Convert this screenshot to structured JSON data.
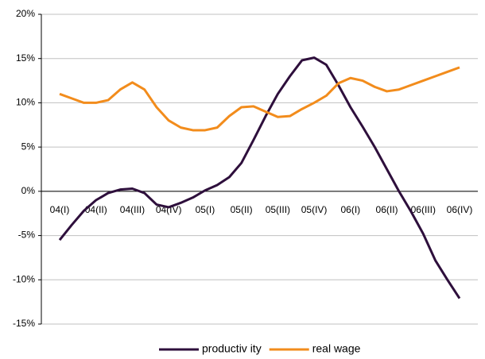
{
  "chart_data": {
    "type": "line",
    "categories": [
      "04(I)",
      null,
      null,
      "04(II)",
      null,
      null,
      "04(III)",
      null,
      null,
      "04(IV)",
      null,
      null,
      "05(I)",
      null,
      null,
      "05(II)",
      null,
      null,
      "05(III)",
      null,
      null,
      "05(IV)",
      null,
      null,
      "06(I)",
      null,
      null,
      "06(II)",
      null,
      null,
      "06(III)",
      null,
      null,
      "06(IV)"
    ],
    "series": [
      {
        "name": "productiv ity",
        "color": "#2e0f3c",
        "values": [
          -5.5,
          -3.8,
          -2.2,
          -1.0,
          -0.2,
          0.2,
          0.3,
          -0.2,
          -1.5,
          -1.8,
          -1.3,
          -0.7,
          0.1,
          0.7,
          1.6,
          3.2,
          5.8,
          8.5,
          11.0,
          13.0,
          14.8,
          15.1,
          14.3,
          12.0,
          9.5,
          7.3,
          5.0,
          2.5,
          0.0,
          -2.3,
          -4.8,
          -7.8,
          -10.0,
          -12.1
        ]
      },
      {
        "name": "real wage",
        "color": "#f28c1c",
        "values": [
          11.0,
          10.5,
          10.0,
          10.0,
          10.3,
          11.5,
          12.3,
          11.5,
          9.5,
          8.0,
          7.2,
          6.9,
          6.9,
          7.2,
          8.5,
          9.5,
          9.6,
          9.0,
          8.4,
          8.5,
          9.3,
          10.0,
          10.8,
          12.2,
          12.8,
          12.5,
          11.8,
          11.3,
          11.5,
          12.0,
          12.5,
          13.0,
          13.5,
          14.0
        ]
      }
    ],
    "ylim": [
      -15,
      20
    ],
    "yticks": [
      {
        "value": -15,
        "label": "-15%"
      },
      {
        "value": -10,
        "label": "-10%"
      },
      {
        "value": -5,
        "label": "-5%"
      },
      {
        "value": 0,
        "label": "0%"
      },
      {
        "value": 5,
        "label": "5%"
      },
      {
        "value": 10,
        "label": "10%"
      },
      {
        "value": 15,
        "label": "15%"
      },
      {
        "value": 20,
        "label": "20%"
      }
    ],
    "grid": true,
    "legend": "bottom"
  }
}
